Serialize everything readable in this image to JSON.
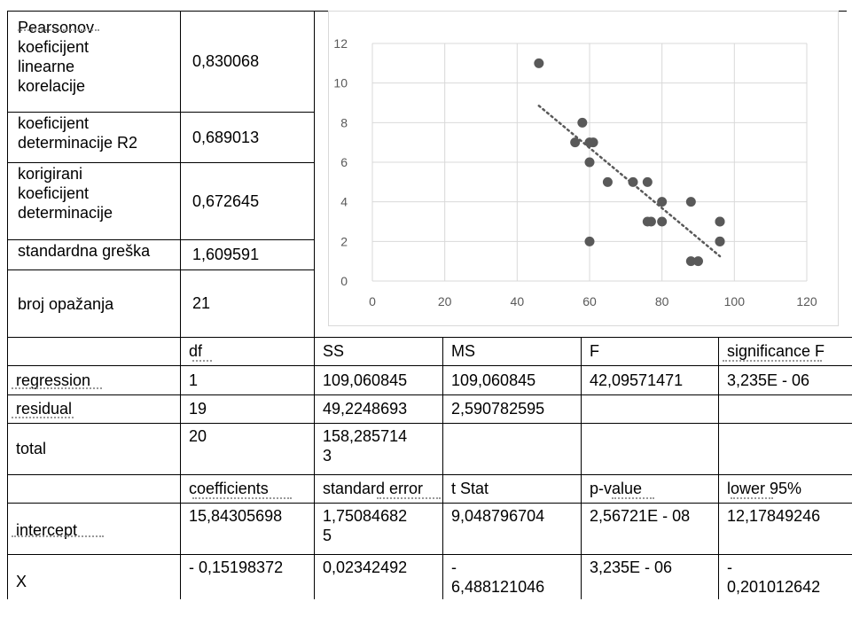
{
  "stats": [
    {
      "label": "Pearsonov\nkoeficijent\nlinearne\nkorelacije",
      "value": "0,830068"
    },
    {
      "label": "koeficijent\ndeterminacije R2",
      "value": "0,689013"
    },
    {
      "label": "korigirani\nkoeficijent\ndeterminacije",
      "value": "0,672645"
    },
    {
      "label": "standardna greška",
      "value": "1,609591"
    },
    {
      "label": "broj opažanja",
      "value": "21"
    }
  ],
  "anova": {
    "headers": [
      "",
      "df",
      "SS",
      "MS",
      "F",
      "significance F"
    ],
    "rows": [
      [
        "regression",
        "1",
        "109,060845",
        "109,060845",
        "42,09571471",
        "3,235E - 06"
      ],
      [
        "residual",
        "19",
        "49,2248693",
        "2,590782595",
        "",
        ""
      ],
      [
        "total",
        "20",
        "158,285714\n3",
        "",
        "",
        ""
      ]
    ]
  },
  "coef": {
    "headers": [
      "",
      "coefficients",
      "standard error",
      "t Stat",
      "p-value",
      "lower 95%"
    ],
    "rows": [
      [
        "intercept",
        "15,84305698",
        "1,75084682\n5",
        "9,048796704",
        "2,56721E - 08",
        "12,17849246"
      ],
      [
        "X",
        "- 0,15198372",
        "0,02342492",
        "-\n6,488121046",
        "3,235E - 06",
        "-\n0,201012642"
      ]
    ]
  },
  "chart_data": {
    "type": "scatter",
    "x": [
      46,
      56,
      58,
      60,
      61,
      60,
      60,
      65,
      72,
      76,
      76,
      77,
      80,
      80,
      88,
      88,
      90,
      96,
      96,
      96,
      96
    ],
    "y": [
      11,
      7,
      8,
      6,
      7,
      7,
      2,
      5,
      5,
      5,
      3,
      3,
      4,
      3,
      4,
      1,
      1,
      3,
      2,
      2,
      3
    ],
    "xlim": [
      0,
      120
    ],
    "ylim": [
      0,
      12
    ],
    "xticks": [
      "0",
      "20",
      "40",
      "60",
      "80",
      "100",
      "120"
    ],
    "yticks": [
      "0",
      "2",
      "4",
      "6",
      "8",
      "10",
      "12"
    ],
    "trendline": {
      "style": "dotted",
      "intercept": 15.84305698,
      "slope": -0.15198372
    },
    "grid": true,
    "marker_color": "#595959",
    "grid_color": "#d9d9d9"
  }
}
